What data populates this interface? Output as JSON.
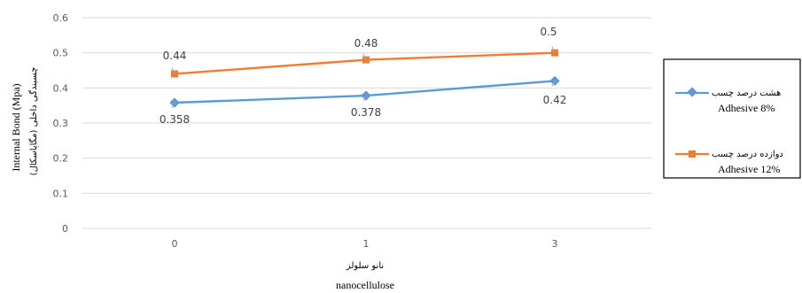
{
  "chart_data": {
    "type": "line",
    "categories": [
      "0",
      "1",
      "3"
    ],
    "ylim": [
      0,
      0.6
    ],
    "yticks": [
      "0",
      "0.1",
      "0.2",
      "0.3",
      "0.4",
      "0.5",
      "0.6"
    ],
    "ylabel_en": "Internal Bond (Mpa)",
    "ylabel_fa": "چسبندگی داخلی (مگاپاسکال)",
    "xlabel_fa": "نانو سلولز",
    "xlabel_en": "nanocellulose",
    "grid": true,
    "legend_position": "right",
    "series": [
      {
        "name_fa": "هشت درصد چسب",
        "name_en": "Adhesive  8%",
        "values": [
          0.358,
          0.378,
          0.42
        ],
        "labels": [
          "0.358",
          "0.378",
          "0.42"
        ],
        "color": "#5B9BD5",
        "marker": "diamond"
      },
      {
        "name_fa": "دوازده درصد چسب",
        "name_en": "Adhesive  12%",
        "values": [
          0.44,
          0.48,
          0.5
        ],
        "labels": [
          "0.44",
          "0.48",
          "0.5"
        ],
        "color": "#ED7D31",
        "marker": "square"
      }
    ]
  }
}
